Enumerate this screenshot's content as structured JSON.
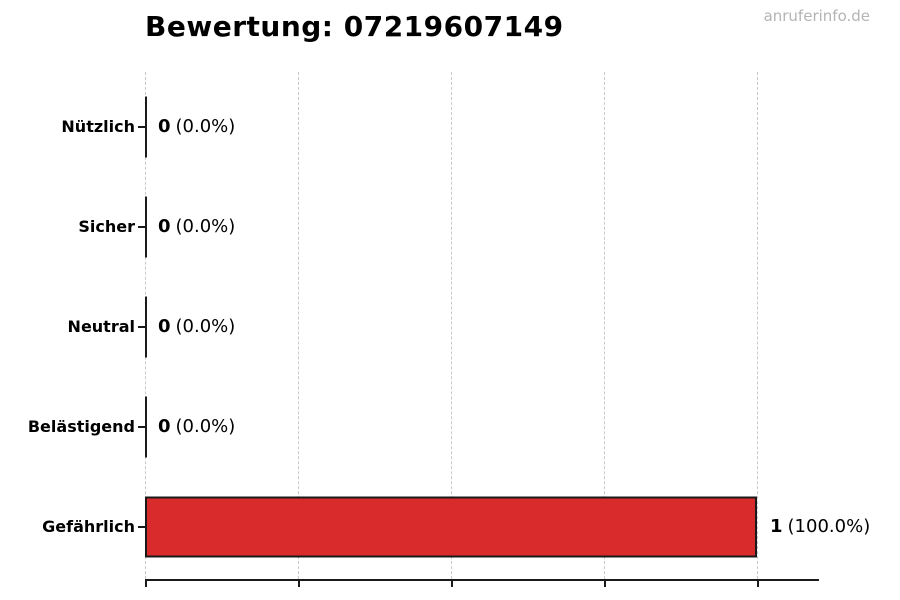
{
  "watermark": "anruferinfo.de",
  "chart_data": {
    "type": "bar",
    "orientation": "horizontal",
    "title": "Bewertung: 07219607149",
    "categories": [
      "Nützlich",
      "Sicher",
      "Neutral",
      "Belästigend",
      "Gefährlich"
    ],
    "values": [
      0,
      0,
      0,
      0,
      1
    ],
    "counts": [
      "0",
      "0",
      "0",
      "0",
      "1"
    ],
    "pcts": [
      "(0.0%)",
      "(0.0%)",
      "(0.0%)",
      "(0.0%)",
      "(100.0%)"
    ],
    "bar_labels": [
      "0 (0.0%)",
      "0 (0.0%)",
      "0 (0.0%)",
      "0 (0.0%)",
      "1 (100.0%)"
    ],
    "xlabel": "",
    "ylabel": "",
    "xlim": [
      0,
      1.1
    ],
    "x_gridlines": [
      0,
      0.25,
      0.5,
      0.75,
      1.0
    ],
    "grid_style": "dashed-vertical",
    "legend": "none",
    "colors": {
      "bar_fill": "#d92b2b",
      "bar_border": "#1a1a1a",
      "axis": "#1a1a1a",
      "gridline": "#c9c9c9",
      "text": "#000000",
      "watermark": "#b4b4b4"
    }
  }
}
